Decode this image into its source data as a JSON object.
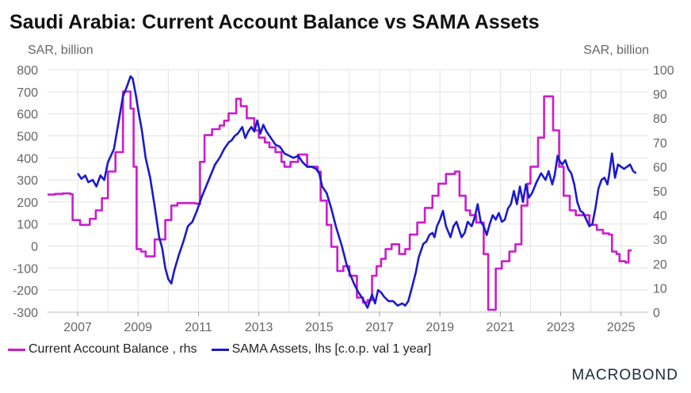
{
  "title": "Saudi Arabia: Current Account Balance vs SAMA Assets",
  "left_unit": "SAR, billion",
  "right_unit": "SAR, billion",
  "logo": "MACROBOND",
  "colors": {
    "current_account": "#cc1ccc",
    "sama_assets": "#1a1acc",
    "grid": "#e3e3e3",
    "axis_text": "#666666"
  },
  "chart_data": {
    "type": "line",
    "xlim": [
      2006,
      2025.9
    ],
    "x_ticks": [
      "2007",
      "2009",
      "2011",
      "2013",
      "2015",
      "2017",
      "2019",
      "2021",
      "2023",
      "2025"
    ],
    "left_axis": {
      "ylim": [
        -300,
        800
      ],
      "ticks": [
        "800",
        "700",
        "600",
        "500",
        "400",
        "300",
        "200",
        "100",
        "0",
        "-100",
        "-200",
        "-300"
      ]
    },
    "right_axis": {
      "ylim": [
        0,
        100
      ],
      "ticks": [
        "100",
        "90",
        "80",
        "70",
        "60",
        "50",
        "40",
        "30",
        "20",
        "10",
        "0"
      ]
    },
    "series": [
      {
        "name": "Current Account Balance , rhs",
        "axis": "right",
        "color": "#cc1ccc",
        "step": true,
        "points": [
          [
            2006.0,
            48.5
          ],
          [
            2006.25,
            48.8
          ],
          [
            2006.5,
            49
          ],
          [
            2006.75,
            48.7
          ],
          [
            2006.83,
            38
          ],
          [
            2007.0,
            38
          ],
          [
            2007.08,
            36
          ],
          [
            2007.25,
            36
          ],
          [
            2007.4,
            38.5
          ],
          [
            2007.6,
            42
          ],
          [
            2007.8,
            47
          ],
          [
            2008.0,
            58
          ],
          [
            2008.25,
            66
          ],
          [
            2008.5,
            91
          ],
          [
            2008.7,
            91
          ],
          [
            2008.75,
            84
          ],
          [
            2008.85,
            60
          ],
          [
            2008.95,
            26
          ],
          [
            2009.1,
            25
          ],
          [
            2009.25,
            23
          ],
          [
            2009.45,
            23
          ],
          [
            2009.55,
            30
          ],
          [
            2009.75,
            30
          ],
          [
            2009.9,
            38
          ],
          [
            2010.1,
            44
          ],
          [
            2010.3,
            45
          ],
          [
            2010.6,
            45
          ],
          [
            2010.9,
            44.8
          ],
          [
            2011.0,
            44.5
          ],
          [
            2011.05,
            62
          ],
          [
            2011.2,
            73
          ],
          [
            2011.45,
            75.5
          ],
          [
            2011.7,
            77
          ],
          [
            2011.85,
            79
          ],
          [
            2012.0,
            82
          ],
          [
            2012.25,
            88
          ],
          [
            2012.4,
            85
          ],
          [
            2012.6,
            80
          ],
          [
            2012.85,
            75
          ],
          [
            2013.0,
            72
          ],
          [
            2013.2,
            70
          ],
          [
            2013.35,
            68
          ],
          [
            2013.55,
            66
          ],
          [
            2013.75,
            62
          ],
          [
            2013.85,
            60
          ],
          [
            2014.05,
            62
          ],
          [
            2014.3,
            65
          ],
          [
            2014.6,
            60
          ],
          [
            2014.95,
            58
          ],
          [
            2015.05,
            46
          ],
          [
            2015.25,
            36
          ],
          [
            2015.4,
            27
          ],
          [
            2015.6,
            17
          ],
          [
            2015.8,
            19
          ],
          [
            2016.0,
            15
          ],
          [
            2016.25,
            6
          ],
          [
            2016.45,
            4
          ],
          [
            2016.6,
            5
          ],
          [
            2016.75,
            15
          ],
          [
            2016.9,
            19
          ],
          [
            2017.05,
            22
          ],
          [
            2017.2,
            26
          ],
          [
            2017.4,
            28
          ],
          [
            2017.65,
            24
          ],
          [
            2017.85,
            26
          ],
          [
            2018.0,
            32
          ],
          [
            2018.25,
            37
          ],
          [
            2018.5,
            43
          ],
          [
            2018.75,
            48
          ],
          [
            2018.95,
            53
          ],
          [
            2019.2,
            57
          ],
          [
            2019.5,
            58
          ],
          [
            2019.65,
            48
          ],
          [
            2019.85,
            42
          ],
          [
            2020.0,
            40
          ],
          [
            2020.2,
            37
          ],
          [
            2020.45,
            24
          ],
          [
            2020.6,
            1
          ],
          [
            2020.85,
            18
          ],
          [
            2021.05,
            21
          ],
          [
            2021.3,
            25
          ],
          [
            2021.5,
            28
          ],
          [
            2021.7,
            44
          ],
          [
            2021.9,
            53
          ],
          [
            2022.0,
            60
          ],
          [
            2022.25,
            72
          ],
          [
            2022.45,
            89
          ],
          [
            2022.6,
            89
          ],
          [
            2022.75,
            75
          ],
          [
            2022.95,
            60
          ],
          [
            2023.1,
            48
          ],
          [
            2023.3,
            42
          ],
          [
            2023.5,
            40
          ],
          [
            2023.75,
            40
          ],
          [
            2023.95,
            36
          ],
          [
            2024.2,
            34
          ],
          [
            2024.4,
            32.5
          ],
          [
            2024.6,
            32
          ],
          [
            2024.7,
            25
          ],
          [
            2024.85,
            24
          ],
          [
            2024.95,
            21
          ],
          [
            2025.15,
            20.5
          ],
          [
            2025.25,
            25.5
          ],
          [
            2025.35,
            25.5
          ]
        ]
      },
      {
        "name": "SAMA Assets, lhs [c.o.p. val 1 year]",
        "axis": "left",
        "color": "#1a1acc",
        "step": false,
        "points": [
          [
            2007.0,
            330
          ],
          [
            2007.12,
            305
          ],
          [
            2007.25,
            320
          ],
          [
            2007.35,
            290
          ],
          [
            2007.5,
            300
          ],
          [
            2007.62,
            270
          ],
          [
            2007.75,
            320
          ],
          [
            2007.88,
            300
          ],
          [
            2008.0,
            380
          ],
          [
            2008.2,
            440
          ],
          [
            2008.35,
            560
          ],
          [
            2008.5,
            680
          ],
          [
            2008.62,
            720
          ],
          [
            2008.75,
            770
          ],
          [
            2008.82,
            760
          ],
          [
            2008.92,
            690
          ],
          [
            2009.0,
            620
          ],
          [
            2009.12,
            530
          ],
          [
            2009.25,
            400
          ],
          [
            2009.4,
            310
          ],
          [
            2009.55,
            180
          ],
          [
            2009.7,
            40
          ],
          [
            2009.8,
            -10
          ],
          [
            2009.9,
            -100
          ],
          [
            2010.0,
            -150
          ],
          [
            2010.1,
            -170
          ],
          [
            2010.2,
            -110
          ],
          [
            2010.35,
            -40
          ],
          [
            2010.5,
            20
          ],
          [
            2010.65,
            90
          ],
          [
            2010.8,
            110
          ],
          [
            2010.95,
            160
          ],
          [
            2011.1,
            220
          ],
          [
            2011.25,
            270
          ],
          [
            2011.4,
            320
          ],
          [
            2011.55,
            370
          ],
          [
            2011.7,
            400
          ],
          [
            2011.85,
            440
          ],
          [
            2012.0,
            470
          ],
          [
            2012.1,
            480
          ],
          [
            2012.2,
            500
          ],
          [
            2012.3,
            510
          ],
          [
            2012.45,
            540
          ],
          [
            2012.55,
            490
          ],
          [
            2012.65,
            520
          ],
          [
            2012.75,
            540
          ],
          [
            2012.85,
            520
          ],
          [
            2012.95,
            570
          ],
          [
            2013.05,
            510
          ],
          [
            2013.15,
            550
          ],
          [
            2013.25,
            520
          ],
          [
            2013.4,
            490
          ],
          [
            2013.55,
            460
          ],
          [
            2013.7,
            450
          ],
          [
            2013.85,
            420
          ],
          [
            2014.0,
            410
          ],
          [
            2014.15,
            400
          ],
          [
            2014.3,
            410
          ],
          [
            2014.45,
            380
          ],
          [
            2014.6,
            360
          ],
          [
            2014.75,
            360
          ],
          [
            2014.9,
            350
          ],
          [
            2015.0,
            330
          ],
          [
            2015.1,
            270
          ],
          [
            2015.25,
            240
          ],
          [
            2015.4,
            170
          ],
          [
            2015.55,
            90
          ],
          [
            2015.75,
            0
          ],
          [
            2015.9,
            -80
          ],
          [
            2016.0,
            -120
          ],
          [
            2016.15,
            -170
          ],
          [
            2016.3,
            -210
          ],
          [
            2016.45,
            -240
          ],
          [
            2016.6,
            -280
          ],
          [
            2016.75,
            -220
          ],
          [
            2016.85,
            -260
          ],
          [
            2016.95,
            -200
          ],
          [
            2017.05,
            -210
          ],
          [
            2017.15,
            -230
          ],
          [
            2017.3,
            -250
          ],
          [
            2017.45,
            -250
          ],
          [
            2017.6,
            -270
          ],
          [
            2017.75,
            -260
          ],
          [
            2017.85,
            -270
          ],
          [
            2017.95,
            -250
          ],
          [
            2018.05,
            -200
          ],
          [
            2018.2,
            -120
          ],
          [
            2018.3,
            -50
          ],
          [
            2018.45,
            10
          ],
          [
            2018.55,
            20
          ],
          [
            2018.65,
            50
          ],
          [
            2018.75,
            60
          ],
          [
            2018.82,
            40
          ],
          [
            2018.9,
            90
          ],
          [
            2019.0,
            120
          ],
          [
            2019.1,
            160
          ],
          [
            2019.2,
            90
          ],
          [
            2019.35,
            40
          ],
          [
            2019.45,
            90
          ],
          [
            2019.55,
            110
          ],
          [
            2019.62,
            80
          ],
          [
            2019.72,
            40
          ],
          [
            2019.82,
            60
          ],
          [
            2019.92,
            110
          ],
          [
            2020.05,
            90
          ],
          [
            2020.15,
            130
          ],
          [
            2020.25,
            190
          ],
          [
            2020.35,
            110
          ],
          [
            2020.45,
            90
          ],
          [
            2020.55,
            50
          ],
          [
            2020.65,
            100
          ],
          [
            2020.75,
            140
          ],
          [
            2020.85,
            120
          ],
          [
            2020.95,
            150
          ],
          [
            2021.05,
            110
          ],
          [
            2021.15,
            120
          ],
          [
            2021.25,
            170
          ],
          [
            2021.35,
            190
          ],
          [
            2021.45,
            250
          ],
          [
            2021.55,
            190
          ],
          [
            2021.65,
            270
          ],
          [
            2021.75,
            200
          ],
          [
            2021.85,
            280
          ],
          [
            2021.95,
            220
          ],
          [
            2022.05,
            240
          ],
          [
            2022.2,
            290
          ],
          [
            2022.35,
            330
          ],
          [
            2022.5,
            300
          ],
          [
            2022.6,
            340
          ],
          [
            2022.72,
            280
          ],
          [
            2022.8,
            320
          ],
          [
            2022.9,
            410
          ],
          [
            2022.95,
            390
          ],
          [
            2023.05,
            370
          ],
          [
            2023.15,
            390
          ],
          [
            2023.25,
            350
          ],
          [
            2023.35,
            330
          ],
          [
            2023.45,
            280
          ],
          [
            2023.55,
            200
          ],
          [
            2023.65,
            160
          ],
          [
            2023.75,
            150
          ],
          [
            2023.85,
            120
          ],
          [
            2023.95,
            90
          ],
          [
            2024.05,
            100
          ],
          [
            2024.15,
            170
          ],
          [
            2024.25,
            260
          ],
          [
            2024.35,
            300
          ],
          [
            2024.45,
            310
          ],
          [
            2024.55,
            280
          ],
          [
            2024.6,
            320
          ],
          [
            2024.7,
            420
          ],
          [
            2024.8,
            310
          ],
          [
            2024.9,
            370
          ],
          [
            2025.0,
            360
          ],
          [
            2025.1,
            350
          ],
          [
            2025.2,
            360
          ],
          [
            2025.3,
            370
          ],
          [
            2025.4,
            340
          ],
          [
            2025.5,
            330
          ]
        ]
      }
    ]
  }
}
